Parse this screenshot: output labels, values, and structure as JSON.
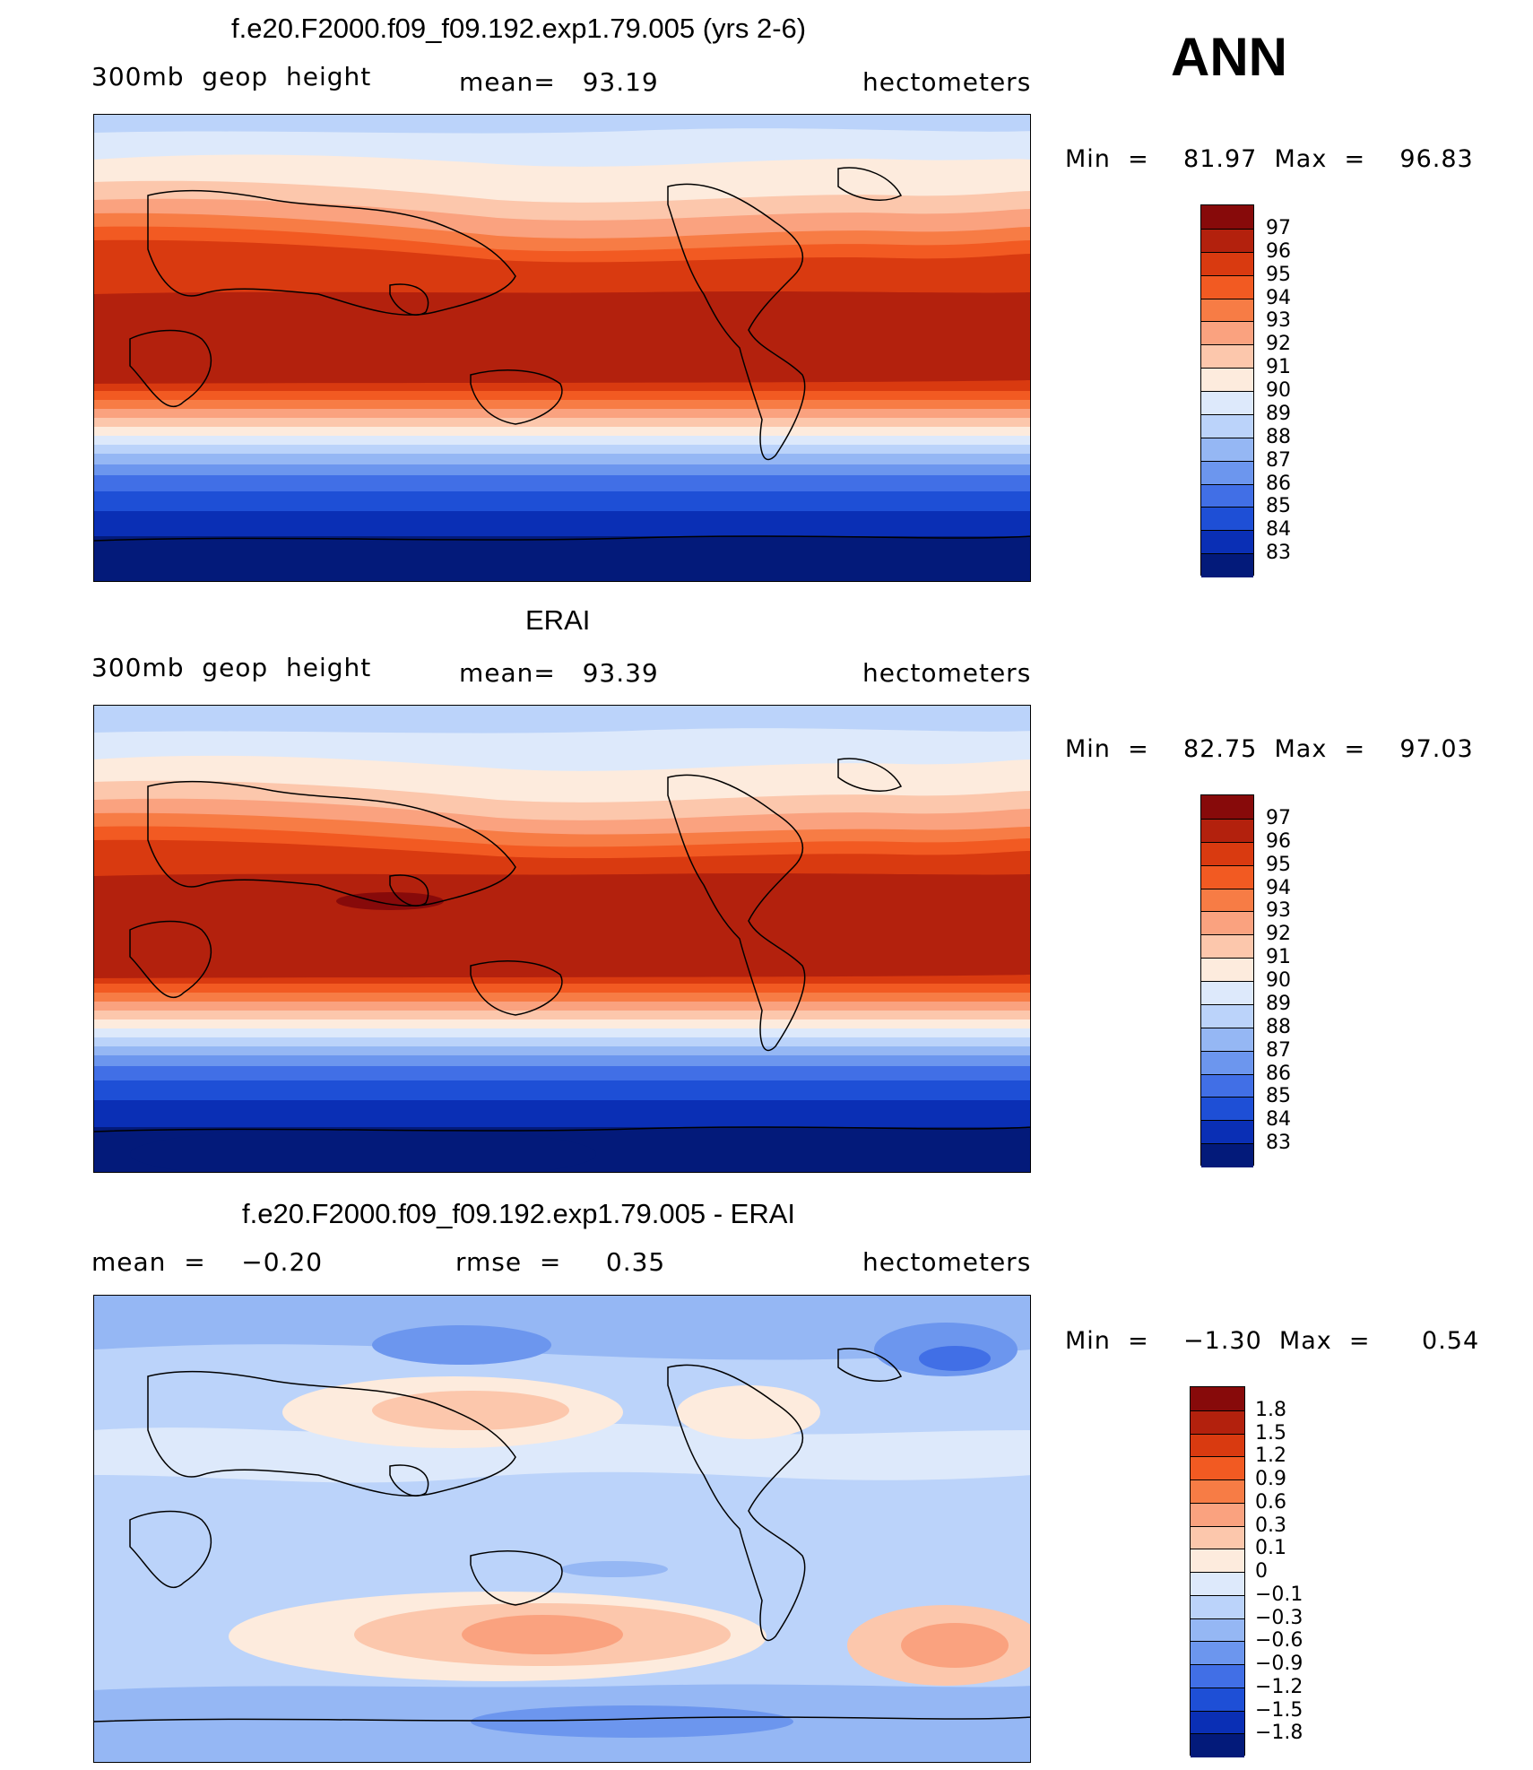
{
  "season": "ANN",
  "panels": [
    {
      "title": "f.e20.F2000.f09_f09.192.exp1.79.005 (yrs 2-6)",
      "left_label": "300mb  geop  height",
      "center_label": "mean=   93.19",
      "right_label": "hectometers",
      "minmax": "Min  =    81.97  Max  =    96.83",
      "colorbar_labels": [
        "97",
        "96",
        "95",
        "94",
        "93",
        "92",
        "91",
        "90",
        "89",
        "88",
        "87",
        "86",
        "85",
        "84",
        "83"
      ],
      "colorbar_colors": [
        "#870A0A",
        "#B3210D",
        "#D93A10",
        "#F25A22",
        "#F77C45",
        "#FAA27F",
        "#FCC7AC",
        "#FDEBDD",
        "#DDE9FB",
        "#BBD3FA",
        "#95B7F4",
        "#6C96EE",
        "#416FE6",
        "#1E4FD6",
        "#0A2FB5",
        "#031A7A"
      ]
    },
    {
      "title": "ERAI",
      "left_label": "300mb  geop  height",
      "center_label": "mean=   93.39",
      "right_label": "hectometers",
      "minmax": "Min  =    82.75  Max  =    97.03",
      "colorbar_labels": [
        "97",
        "96",
        "95",
        "94",
        "93",
        "92",
        "91",
        "90",
        "89",
        "88",
        "87",
        "86",
        "85",
        "84",
        "83"
      ],
      "colorbar_colors": [
        "#870A0A",
        "#B3210D",
        "#D93A10",
        "#F25A22",
        "#F77C45",
        "#FAA27F",
        "#FCC7AC",
        "#FDEBDD",
        "#DDE9FB",
        "#BBD3FA",
        "#95B7F4",
        "#6C96EE",
        "#416FE6",
        "#1E4FD6",
        "#0A2FB5",
        "#031A7A"
      ]
    },
    {
      "title": "f.e20.F2000.f09_f09.192.exp1.79.005 - ERAI",
      "left_label": "mean  =    −0.20",
      "center_label": "rmse  =     0.35",
      "right_label": "hectometers",
      "minmax": "Min  =    −1.30  Max  =      0.54",
      "colorbar_labels": [
        "1.8",
        "1.5",
        "1.2",
        "0.9",
        "0.6",
        "0.3",
        "0.1",
        "0",
        "−0.1",
        "−0.3",
        "−0.6",
        "−0.9",
        "−1.2",
        "−1.5",
        "−1.8"
      ],
      "colorbar_colors": [
        "#870A0A",
        "#B3210D",
        "#D93A10",
        "#F25A22",
        "#F77C45",
        "#FAA27F",
        "#FCC7AC",
        "#FDEBDD",
        "#DDE9FB",
        "#BBD3FA",
        "#95B7F4",
        "#6C96EE",
        "#416FE6",
        "#1E4FD6",
        "#0A2FB5",
        "#031A7A"
      ]
    }
  ]
}
